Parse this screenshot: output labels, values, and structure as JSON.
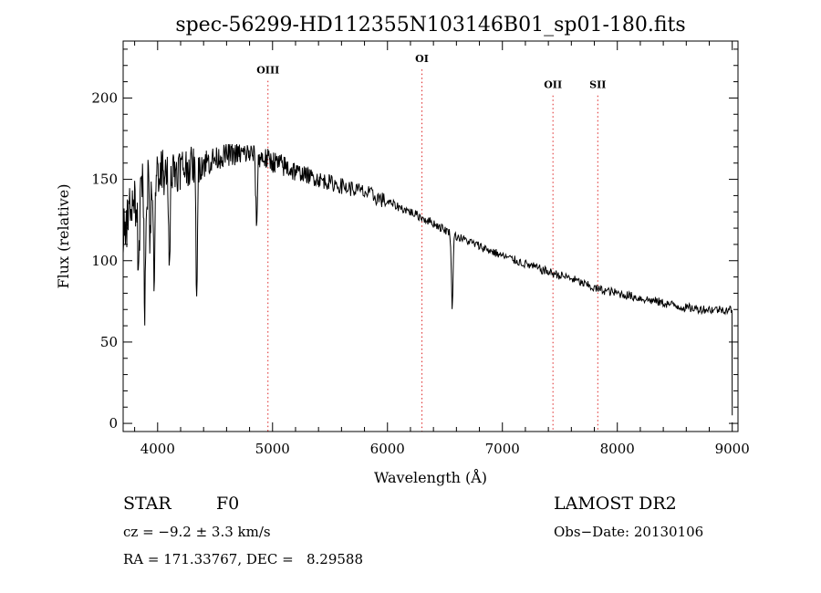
{
  "chart_data": {
    "type": "line",
    "title": "spec-56299-HD112355N103146B01_sp01-180.fits",
    "xlabel": "Wavelength (Å)",
    "ylabel": "Flux (relative)",
    "xlim": [
      3700,
      9050
    ],
    "ylim": [
      -5,
      235
    ],
    "x_ticks": [
      4000,
      5000,
      6000,
      7000,
      8000,
      9000
    ],
    "y_ticks": [
      0,
      50,
      100,
      150,
      200
    ],
    "x_tick_labels": [
      "4000",
      "5000",
      "6000",
      "7000",
      "8000",
      "9000"
    ],
    "y_tick_labels": [
      "0",
      "50",
      "100",
      "150",
      "200"
    ],
    "spectral_lines": [
      {
        "label": "OIII",
        "wavelength": 4960,
        "label_flux": 215
      },
      {
        "label": "OI",
        "wavelength": 6300,
        "label_flux": 222
      },
      {
        "label": "OII",
        "wavelength": 7440,
        "label_flux": 206
      },
      {
        "label": "SII",
        "wavelength": 7830,
        "label_flux": 206
      }
    ],
    "continuum": [
      [
        3700,
        120
      ],
      [
        3800,
        135
      ],
      [
        3900,
        148
      ],
      [
        4000,
        152
      ],
      [
        4200,
        157
      ],
      [
        4400,
        160
      ],
      [
        4600,
        165
      ],
      [
        4800,
        166
      ],
      [
        5000,
        161
      ],
      [
        5200,
        155
      ],
      [
        5400,
        150
      ],
      [
        5600,
        146
      ],
      [
        5800,
        142
      ],
      [
        6000,
        136
      ],
      [
        6200,
        130
      ],
      [
        6400,
        123
      ],
      [
        6600,
        115
      ],
      [
        6800,
        109
      ],
      [
        7000,
        103
      ],
      [
        7200,
        98
      ],
      [
        7400,
        93
      ],
      [
        7600,
        89
      ],
      [
        7800,
        83
      ],
      [
        8000,
        80
      ],
      [
        8200,
        77
      ],
      [
        8400,
        74
      ],
      [
        8600,
        71
      ],
      [
        8800,
        70
      ],
      [
        9000,
        70
      ]
    ],
    "absorption_features": [
      {
        "wavelength": 3835,
        "depth": 55
      },
      {
        "wavelength": 3889,
        "depth": 75
      },
      {
        "wavelength": 3934,
        "depth": 40
      },
      {
        "wavelength": 3970,
        "depth": 55
      },
      {
        "wavelength": 4102,
        "depth": 50
      },
      {
        "wavelength": 4340,
        "depth": 75
      },
      {
        "wavelength": 4861,
        "depth": 42
      },
      {
        "wavelength": 6563,
        "depth": 45
      }
    ]
  },
  "info": {
    "object_class": "STAR",
    "subclass": "F0",
    "survey": "LAMOST DR2",
    "redshift": "cz = −9.2 ± 3.3 km/s",
    "obs_date": "Obs−Date: 20130106",
    "coords": "RA = 171.33767, DEC =   8.29588"
  }
}
